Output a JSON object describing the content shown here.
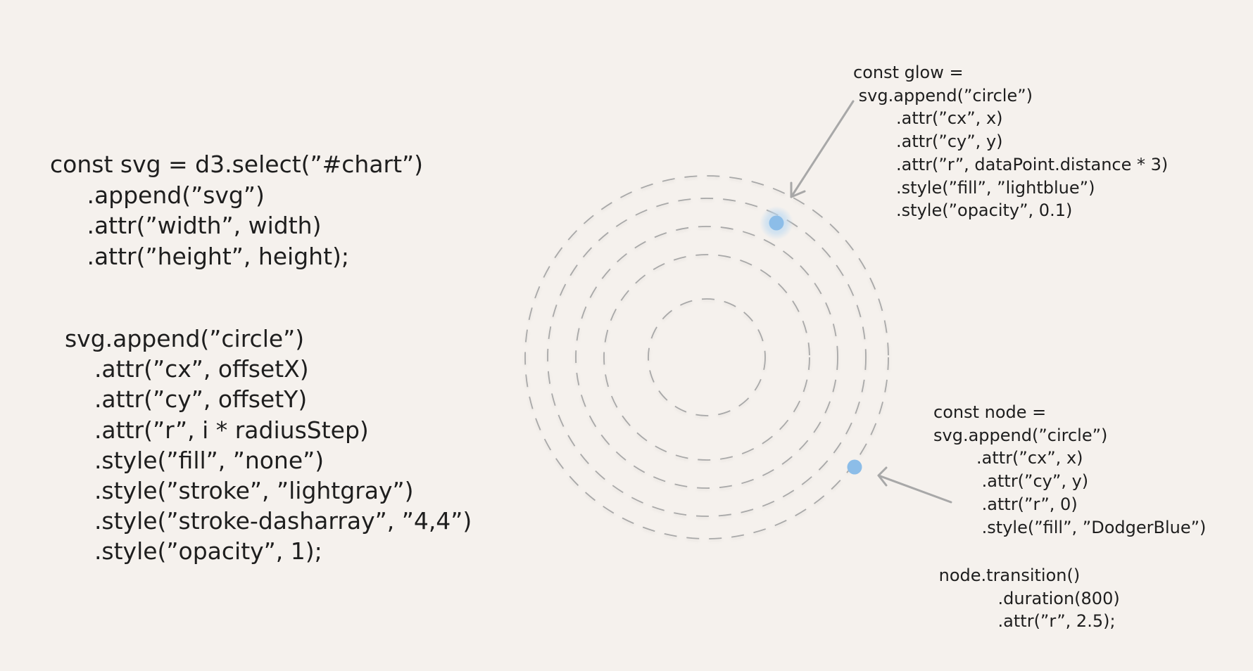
{
  "svg_setup_code": [
    "const svg = d3.select(”#chart”)",
    "     .append(”svg”)",
    "     .attr(”width”, width)",
    "     .attr(”height”, height);"
  ],
  "circle_setup_code": [
    "  svg.append(”circle”)",
    "      .attr(”cx”, offsetX)",
    "      .attr(”cy”, offsetY)",
    "      .attr(”r”, i * radiusStep)",
    "      .style(”fill”, ”none”)",
    "      .style(”stroke”, ”lightgray”)",
    "      .style(”stroke-dasharray”, ”4,4”)",
    "      .style(”opacity”, 1);"
  ],
  "glow_code": [
    "const glow =",
    " svg.append(”circle”)",
    "        .attr(”cx”, x)",
    "        .attr(”cy”, y)",
    "        .attr(”r”, dataPoint.distance * 3)",
    "        .style(”fill”, ”lightblue”)",
    "        .style(”opacity”, 0.1)"
  ],
  "node_code": [
    "const node =",
    "svg.append(”circle”)",
    "        .attr(”cx”, x)",
    "         .attr(”cy”, y)",
    "         .attr(”r”, 0)",
    "         .style(”fill”, ”DodgerBlue”)"
  ],
  "transition_code": [
    " node.transition()",
    "            .duration(800)",
    "            .attr(”r”, 2.5);"
  ],
  "colors": {
    "background": "#f5f1ed",
    "ring_stroke": "#a8a8a8",
    "node_fill": "#8cbde8",
    "glow_fill": "#b9d8f2",
    "arrow": "#a8a8a8",
    "text": "#1e1e1e"
  }
}
